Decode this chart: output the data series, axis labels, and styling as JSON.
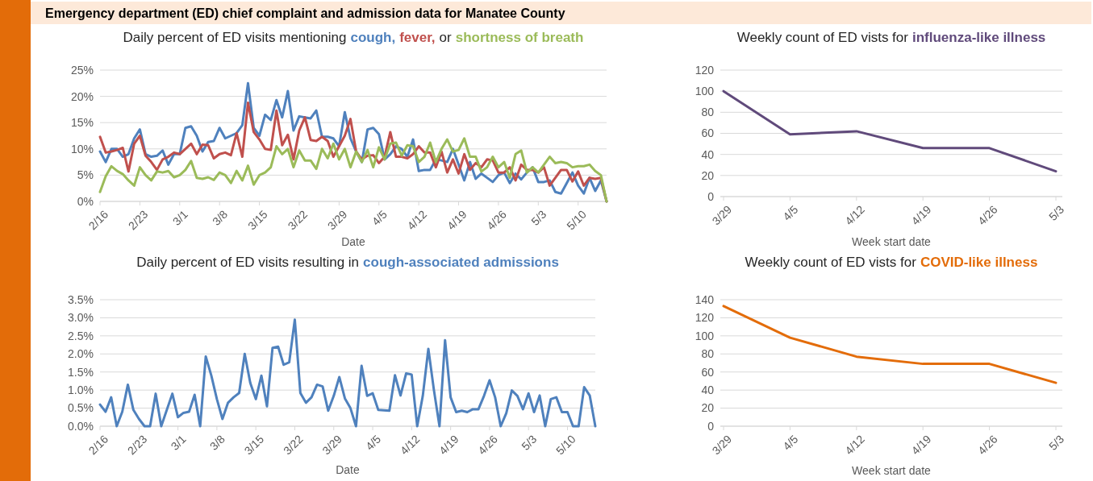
{
  "chart_data": [
    {
      "type": "line",
      "title": "Daily percent of ED visits mentioning",
      "xlabel": "Date",
      "annotations": [
        "Emergency department (ED) chief complaint and admission data for Manatee County",
        "or"
      ],
      "x": [
        "--02-16",
        "--02-17",
        "--02-18",
        "--02-19",
        "--02-20",
        "--02-21",
        "--02-22",
        "--02-23",
        "--02-24",
        "--02-25",
        "--02-26",
        "--02-27",
        "--02-28",
        "--02-29",
        "--03-01",
        "--03-02",
        "--03-03",
        "--03-04",
        "--03-05",
        "--03-06",
        "--03-07",
        "--03-08",
        "--03-09",
        "--03-10",
        "--03-11",
        "--03-12",
        "--03-13",
        "--03-14",
        "--03-15",
        "--03-16",
        "--03-17",
        "--03-18",
        "--03-19",
        "--03-20",
        "--03-21",
        "--03-22",
        "--03-23",
        "--03-24",
        "--03-25",
        "--03-26",
        "--03-27",
        "--03-28",
        "--03-29",
        "--03-30",
        "--03-31",
        "--04-01",
        "--04-02",
        "--04-03",
        "--04-04",
        "--04-05",
        "--04-06",
        "--04-07",
        "--04-08",
        "--04-09",
        "--04-10",
        "--04-11",
        "--04-12",
        "--04-13",
        "--04-14",
        "--04-15",
        "--04-16",
        "--04-17",
        "--04-18",
        "--04-19",
        "--04-20",
        "--04-21",
        "--04-22",
        "--04-23",
        "--04-24",
        "--04-25",
        "--04-26",
        "--04-27",
        "--04-28",
        "--04-29",
        "--04-30",
        "--05-01",
        "--05-02",
        "--05-03",
        "--05-04",
        "--05-05",
        "--05-06",
        "--05-07",
        "--05-08",
        "--05-09",
        "--05-10",
        "--05-11",
        "--05-12",
        "--05-13",
        "--05-14",
        "--05-15"
      ],
      "xlim": [
        "--02-16",
        "--05-15"
      ],
      "xticks": [
        {
          "value": "--02-16",
          "label": "2/16"
        },
        {
          "value": "--02-23",
          "label": "2/23"
        },
        {
          "value": "--03-01",
          "label": "3/1"
        },
        {
          "value": "--03-08",
          "label": "3/8"
        },
        {
          "value": "--03-15",
          "label": "3/15"
        },
        {
          "value": "--03-22",
          "label": "3/22"
        },
        {
          "value": "--03-29",
          "label": "3/29"
        },
        {
          "value": "--04-05",
          "label": "4/5"
        },
        {
          "value": "--04-12",
          "label": "4/12"
        },
        {
          "value": "--04-19",
          "label": "4/19"
        },
        {
          "value": "--04-26",
          "label": "4/26"
        },
        {
          "value": "--05-03",
          "label": "5/3"
        },
        {
          "value": "--05-10",
          "label": "5/10"
        }
      ],
      "ylim": [
        0,
        25
      ],
      "yticks": [
        {
          "value": 0,
          "label": "0%"
        },
        {
          "value": 5,
          "label": "5%"
        },
        {
          "value": 10,
          "label": "10%"
        },
        {
          "value": 15,
          "label": "15%"
        },
        {
          "value": 20,
          "label": "20%"
        },
        {
          "value": 25,
          "label": "25%"
        }
      ],
      "grid": "y",
      "series": [
        {
          "name": "cough,",
          "color": "#4f81bd",
          "values": [
            9.5,
            7.5,
            10,
            10,
            8.5,
            9,
            12,
            13.7,
            9,
            8.5,
            8.7,
            9.7,
            7,
            9,
            9,
            14,
            14.3,
            12.5,
            9.5,
            11.3,
            11.5,
            14,
            12,
            12.5,
            13,
            14.5,
            22.5,
            14,
            12.5,
            16.5,
            15.5,
            19.3,
            16,
            21,
            13.5,
            16.2,
            16,
            15.8,
            17.3,
            12.3,
            12.3,
            12,
            10.5,
            17,
            12,
            9.5,
            7.5,
            13.7,
            14,
            12.8,
            8,
            9,
            10.5,
            10,
            8.5,
            11.8,
            5.8,
            6,
            6,
            8,
            7.8,
            7.5,
            10,
            7,
            4,
            7.5,
            4.3,
            5.3,
            4.5,
            3.7,
            5,
            5.5,
            3.5,
            5.3,
            4.2,
            5.5,
            6.5,
            3.7,
            3.7,
            4,
            1.8,
            1.5,
            3.5,
            5.5,
            3,
            1.5,
            4.5,
            2,
            4,
            0
          ]
        },
        {
          "name": "fever,",
          "color": "#c0504d",
          "values": [
            12.3,
            9.3,
            9.5,
            9.8,
            10.2,
            5.7,
            11,
            12.5,
            8.7,
            7.5,
            6,
            8,
            8.5,
            9.3,
            9,
            10,
            11,
            9,
            10.8,
            10.7,
            8.2,
            9,
            9.3,
            8.8,
            13,
            8.5,
            18.8,
            13.2,
            11.8,
            10,
            9.8,
            17.3,
            10.7,
            12.7,
            8,
            13.5,
            16,
            11.7,
            11.5,
            12.3,
            11.5,
            8.5,
            10.5,
            12.5,
            15.7,
            9.5,
            8,
            8.7,
            8.8,
            7.3,
            8.5,
            13.2,
            8.5,
            8.5,
            8.2,
            9,
            10.5,
            9.3,
            9.3,
            6.5,
            9.5,
            5.5,
            8,
            5.3,
            9,
            6,
            7.3,
            6.5,
            8,
            7.8,
            5.5,
            5.5,
            6.5,
            4,
            7,
            6,
            6,
            5.5,
            6.5,
            3,
            4.5,
            6,
            6,
            3.8,
            5.7,
            3,
            4.5,
            4.3,
            4.5,
            0
          ]
        },
        {
          "name": "shortness of breath",
          "color": "#9bbb59",
          "values": [
            1.8,
            4.8,
            6.7,
            5.8,
            5.2,
            4,
            3,
            6.5,
            5,
            4,
            5.7,
            5.5,
            5.8,
            4.6,
            5,
            6,
            7.7,
            4.5,
            4.3,
            4.6,
            4.1,
            5.5,
            5,
            3.5,
            5.8,
            4,
            6.8,
            3.2,
            5,
            5.5,
            6.5,
            10.5,
            9,
            10,
            6.5,
            9.7,
            7.8,
            7.8,
            6.2,
            10,
            8.2,
            11,
            8,
            10,
            6.5,
            9.5,
            7.5,
            9.8,
            6.5,
            10.3,
            8,
            11,
            11.2,
            8.7,
            10.7,
            10.5,
            7.5,
            8.5,
            11.2,
            7.5,
            10,
            11.8,
            9.5,
            9.8,
            12,
            8.5,
            8.5,
            5.7,
            6.5,
            8.5,
            6.5,
            7.5,
            4.5,
            9,
            9.7,
            5.5,
            6.5,
            5.5,
            7,
            8.5,
            7.3,
            7.5,
            7.3,
            6.5,
            6.7,
            6.7,
            7,
            5.8,
            5,
            0
          ]
        }
      ]
    },
    {
      "type": "line",
      "title": "Daily percent of ED visits resulting in",
      "xlabel": "Date",
      "x": [
        "--02-16",
        "--02-17",
        "--02-18",
        "--02-19",
        "--02-20",
        "--02-21",
        "--02-22",
        "--02-23",
        "--02-24",
        "--02-25",
        "--02-26",
        "--02-27",
        "--02-28",
        "--02-29",
        "--03-01",
        "--03-02",
        "--03-03",
        "--03-04",
        "--03-05",
        "--03-06",
        "--03-07",
        "--03-08",
        "--03-09",
        "--03-10",
        "--03-11",
        "--03-12",
        "--03-13",
        "--03-14",
        "--03-15",
        "--03-16",
        "--03-17",
        "--03-18",
        "--03-19",
        "--03-20",
        "--03-21",
        "--03-22",
        "--03-23",
        "--03-24",
        "--03-25",
        "--03-26",
        "--03-27",
        "--03-28",
        "--03-29",
        "--03-30",
        "--03-31",
        "--04-01",
        "--04-02",
        "--04-03",
        "--04-04",
        "--04-05",
        "--04-06",
        "--04-07",
        "--04-08",
        "--04-09",
        "--04-10",
        "--04-11",
        "--04-12",
        "--04-13",
        "--04-14",
        "--04-15",
        "--04-16",
        "--04-17",
        "--04-18",
        "--04-19",
        "--04-20",
        "--04-21",
        "--04-22",
        "--04-23",
        "--04-24",
        "--04-25",
        "--04-26",
        "--04-27",
        "--04-28",
        "--04-29",
        "--04-30",
        "--05-01",
        "--05-02",
        "--05-03",
        "--05-04",
        "--05-05",
        "--05-06",
        "--05-07",
        "--05-08",
        "--05-09",
        "--05-10",
        "--05-11",
        "--05-12",
        "--05-13",
        "--05-14",
        "--05-15"
      ],
      "xlim": [
        "--02-16",
        "--05-15"
      ],
      "xticks": [
        {
          "value": "--02-16",
          "label": "2/16"
        },
        {
          "value": "--02-23",
          "label": "2/23"
        },
        {
          "value": "--03-01",
          "label": "3/1"
        },
        {
          "value": "--03-08",
          "label": "3/8"
        },
        {
          "value": "--03-15",
          "label": "3/15"
        },
        {
          "value": "--03-22",
          "label": "3/22"
        },
        {
          "value": "--03-29",
          "label": "3/29"
        },
        {
          "value": "--04-05",
          "label": "4/5"
        },
        {
          "value": "--04-12",
          "label": "4/12"
        },
        {
          "value": "--04-19",
          "label": "4/19"
        },
        {
          "value": "--04-26",
          "label": "4/26"
        },
        {
          "value": "--05-03",
          "label": "5/3"
        },
        {
          "value": "--05-10",
          "label": "5/10"
        }
      ],
      "ylim": [
        0,
        3.5
      ],
      "yticks": [
        {
          "value": 0,
          "label": "0.0%"
        },
        {
          "value": 0.5,
          "label": "0.5%"
        },
        {
          "value": 1,
          "label": "1.0%"
        },
        {
          "value": 1.5,
          "label": "1.5%"
        },
        {
          "value": 2,
          "label": "2.0%"
        },
        {
          "value": 2.5,
          "label": "2.5%"
        },
        {
          "value": 3,
          "label": "3.0%"
        },
        {
          "value": 3.5,
          "label": "3.5%"
        }
      ],
      "grid": "y",
      "series": [
        {
          "name": "cough-associated admissions",
          "color": "#4f81bd",
          "values": [
            0.6,
            0.4,
            0.8,
            0,
            0.4,
            1.15,
            0.45,
            0.2,
            0,
            0,
            0.9,
            0,
            0.45,
            0.9,
            0.25,
            0.37,
            0.4,
            0.87,
            0,
            1.93,
            1.4,
            0.75,
            0.2,
            0.65,
            0.8,
            0.92,
            2.0,
            1.2,
            0.75,
            1.4,
            0.55,
            2.17,
            2.2,
            1.7,
            1.77,
            2.95,
            0.92,
            0.65,
            0.8,
            1.15,
            1.1,
            0.43,
            0.84,
            1.36,
            0.77,
            0.5,
            0,
            1.67,
            0.84,
            0.91,
            0.45,
            0.44,
            0.43,
            1.41,
            0.85,
            1.46,
            1.43,
            0,
            0.84,
            2.14,
            1.0,
            0,
            2.38,
            0.8,
            0.39,
            0.43,
            0.39,
            0.47,
            0.47,
            0.84,
            1.27,
            0.8,
            0,
            0.36,
            0.99,
            0.84,
            0.47,
            0.91,
            0.39,
            0.85,
            0,
            0.75,
            0.8,
            0.39,
            0.39,
            0,
            0,
            1.08,
            0.85,
            0
          ]
        }
      ]
    },
    {
      "type": "line",
      "title": "Weekly count of ED vists for",
      "xlabel": "Week start date",
      "categories": [
        "3/29",
        "4/5",
        "4/12",
        "4/19",
        "4/26",
        "5/3"
      ],
      "ylim": [
        0,
        120
      ],
      "yticks": [
        0,
        20,
        40,
        60,
        80,
        100,
        120
      ],
      "grid": "y",
      "series": [
        {
          "name": "influenza-like illness",
          "color": "#604a7b",
          "values": [
            100,
            59,
            62,
            46,
            46,
            24
          ]
        }
      ]
    },
    {
      "type": "line",
      "title": "Weekly count of ED vists for",
      "xlabel": "Week start date",
      "categories": [
        "3/29",
        "4/5",
        "4/12",
        "4/19",
        "4/26",
        "5/3"
      ],
      "ylim": [
        0,
        140
      ],
      "yticks": [
        0,
        20,
        40,
        60,
        80,
        100,
        120,
        140
      ],
      "grid": "y",
      "series": [
        {
          "name": "COVID-like illness",
          "color": "#e36c09",
          "values": [
            133,
            98,
            77,
            69,
            69,
            48
          ]
        }
      ]
    }
  ]
}
